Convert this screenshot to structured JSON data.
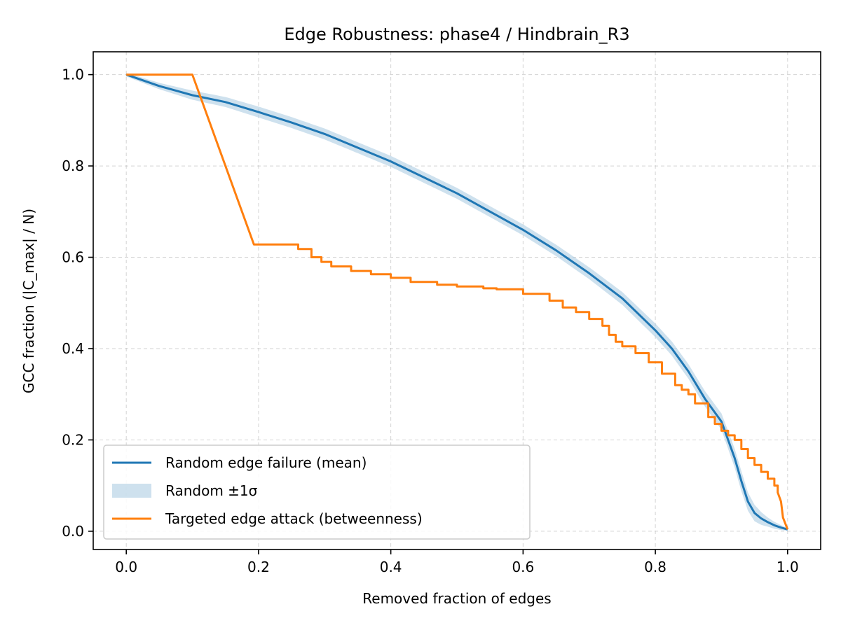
{
  "chart_data": {
    "type": "line",
    "title": "Edge Robustness: phase4 / Hindbrain_R3",
    "xlabel": "Removed fraction of edges",
    "ylabel": "GCC fraction (|C_max| / N)",
    "xlim": [
      -0.05,
      1.05
    ],
    "ylim": [
      -0.04,
      1.05
    ],
    "xticks": [
      0.0,
      0.2,
      0.4,
      0.6,
      0.8,
      1.0
    ],
    "xtick_labels": [
      "0.0",
      "0.2",
      "0.4",
      "0.6",
      "0.8",
      "1.0"
    ],
    "yticks": [
      0.0,
      0.2,
      0.4,
      0.6,
      0.8,
      1.0
    ],
    "ytick_labels": [
      "0.0",
      "0.2",
      "0.4",
      "0.6",
      "0.8",
      "1.0"
    ],
    "grid": true,
    "legend_position": "lower-left",
    "colors": {
      "random": "#1f77b4",
      "band": "#aecde3",
      "targeted": "#ff7f0e",
      "frame": "#000000"
    },
    "series": [
      {
        "name": "Random edge failure (mean)",
        "style": "line",
        "x": [
          0.0,
          0.05,
          0.1,
          0.15,
          0.2,
          0.25,
          0.3,
          0.35,
          0.4,
          0.45,
          0.5,
          0.55,
          0.6,
          0.65,
          0.7,
          0.75,
          0.8,
          0.825,
          0.85,
          0.875,
          0.9,
          0.91,
          0.92,
          0.93,
          0.94,
          0.95,
          0.96,
          0.97,
          0.98,
          0.99,
          1.0
        ],
        "y": [
          1.0,
          0.975,
          0.955,
          0.94,
          0.918,
          0.895,
          0.87,
          0.84,
          0.81,
          0.775,
          0.74,
          0.7,
          0.66,
          0.615,
          0.565,
          0.51,
          0.44,
          0.4,
          0.35,
          0.29,
          0.24,
          0.2,
          0.16,
          0.11,
          0.065,
          0.04,
          0.028,
          0.02,
          0.013,
          0.008,
          0.004
        ]
      },
      {
        "name": "Random ±1σ",
        "style": "band",
        "x": [
          0.0,
          0.1,
          0.2,
          0.3,
          0.4,
          0.5,
          0.6,
          0.7,
          0.8,
          0.85,
          0.9,
          0.93,
          0.95,
          0.97,
          1.0
        ],
        "sigma": [
          0.004,
          0.01,
          0.012,
          0.012,
          0.012,
          0.012,
          0.012,
          0.013,
          0.015,
          0.016,
          0.018,
          0.022,
          0.018,
          0.01,
          0.003
        ]
      },
      {
        "name": "Targeted edge attack (betweenness)",
        "style": "line",
        "x": [
          0.0,
          0.1,
          0.193,
          0.255,
          0.26,
          0.28,
          0.295,
          0.31,
          0.34,
          0.37,
          0.4,
          0.43,
          0.47,
          0.5,
          0.54,
          0.56,
          0.6,
          0.62,
          0.64,
          0.66,
          0.68,
          0.7,
          0.72,
          0.73,
          0.74,
          0.75,
          0.77,
          0.79,
          0.81,
          0.83,
          0.84,
          0.85,
          0.86,
          0.88,
          0.89,
          0.9,
          0.91,
          0.92,
          0.93,
          0.94,
          0.95,
          0.96,
          0.97,
          0.98,
          0.985,
          0.99,
          0.993,
          1.0
        ],
        "y": [
          1.0,
          1.0,
          0.628,
          0.628,
          0.618,
          0.6,
          0.59,
          0.58,
          0.57,
          0.563,
          0.555,
          0.546,
          0.54,
          0.536,
          0.532,
          0.53,
          0.52,
          0.52,
          0.505,
          0.49,
          0.48,
          0.465,
          0.45,
          0.43,
          0.415,
          0.405,
          0.39,
          0.37,
          0.345,
          0.32,
          0.31,
          0.3,
          0.28,
          0.25,
          0.235,
          0.22,
          0.21,
          0.2,
          0.18,
          0.16,
          0.145,
          0.13,
          0.115,
          0.1,
          0.085,
          0.065,
          0.03,
          0.004
        ]
      }
    ]
  }
}
